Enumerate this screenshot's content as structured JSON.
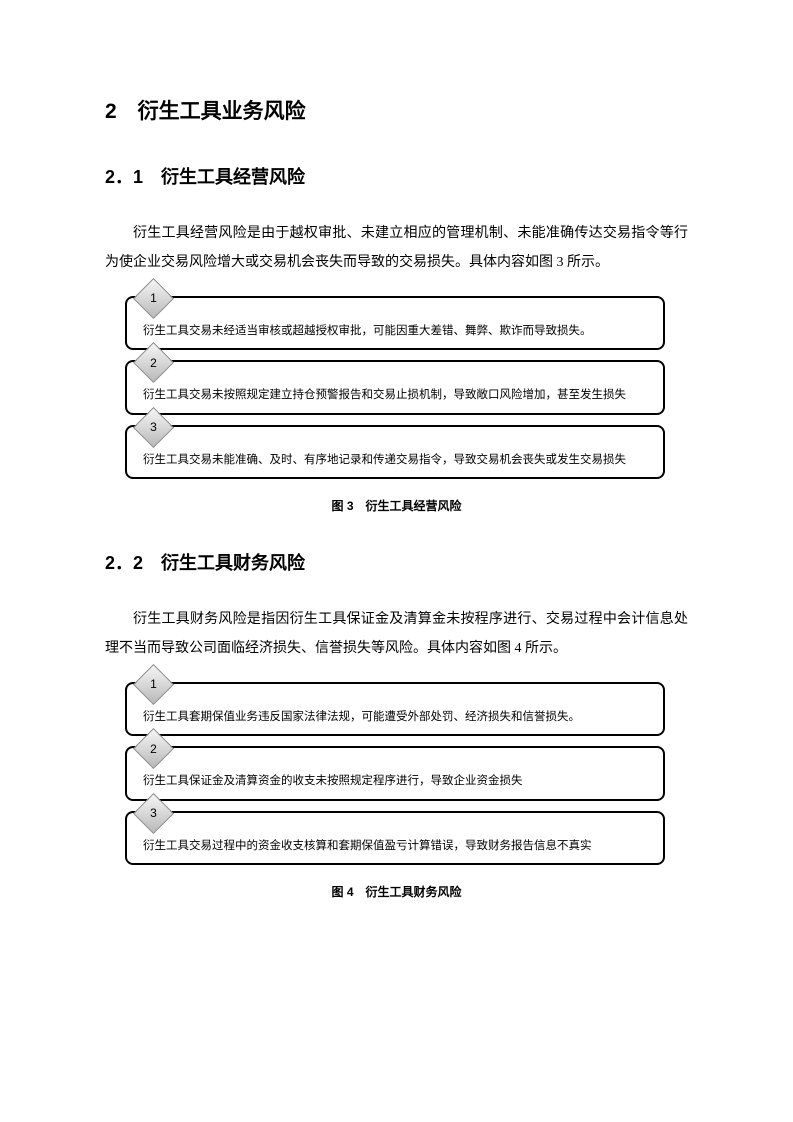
{
  "h1": "2　衍生工具业务风险",
  "section1": {
    "heading": "2．1　衍生工具经营风险",
    "para": "衍生工具经营风险是由于越权审批、未建立相应的管理机制、未能准确传达交易指令等行为使企业交易风险增大或交易机会丧失而导致的交易损失。具体内容如图 3 所示。",
    "items": [
      {
        "num": "1",
        "text": "衍生工具交易未经适当审核或超越授权审批，可能因重大差错、舞弊、欺诈而导致损失。"
      },
      {
        "num": "2",
        "text": "衍生工具交易未按照规定建立持仓预警报告和交易止损机制，导致敞口风险增加，甚至发生损失"
      },
      {
        "num": "3",
        "text": "衍生工具交易未能准确、及时、有序地记录和传递交易指令，导致交易机会丧失或发生交易损失"
      }
    ],
    "caption": "图 3　衍生工具经营风险"
  },
  "section2": {
    "heading": "2．2　衍生工具财务风险",
    "para": "衍生工具财务风险是指因衍生工具保证金及清算金未按程序进行、交易过程中会计信息处理不当而导致公司面临经济损失、信誉损失等风险。具体内容如图 4 所示。",
    "items": [
      {
        "num": "1",
        "text": "衍生工具套期保值业务违反国家法律法规，可能遭受外部处罚、经济损失和信誉损失。"
      },
      {
        "num": "2",
        "text": "衍生工具保证金及清算资金的收支未按照规定程序进行，导致企业资金损失"
      },
      {
        "num": "3",
        "text": "衍生工具交易过程中的资金收支核算和套期保值盈亏计算错误，导致财务报告信息不真实"
      }
    ],
    "caption": "图 4　衍生工具财务风险"
  },
  "style": {
    "border_color": "#000000",
    "border_radius": 8,
    "diamond_gradient": [
      "#f5f5f5",
      "#d8d8d8",
      "#b8b8b8"
    ],
    "diamond_border": "#888888",
    "background": "#ffffff",
    "text_color": "#000000",
    "body_fontsize": 14,
    "box_fontsize": 11.5,
    "caption_fontsize": 12,
    "h1_fontsize": 21,
    "h2_fontsize": 18
  }
}
